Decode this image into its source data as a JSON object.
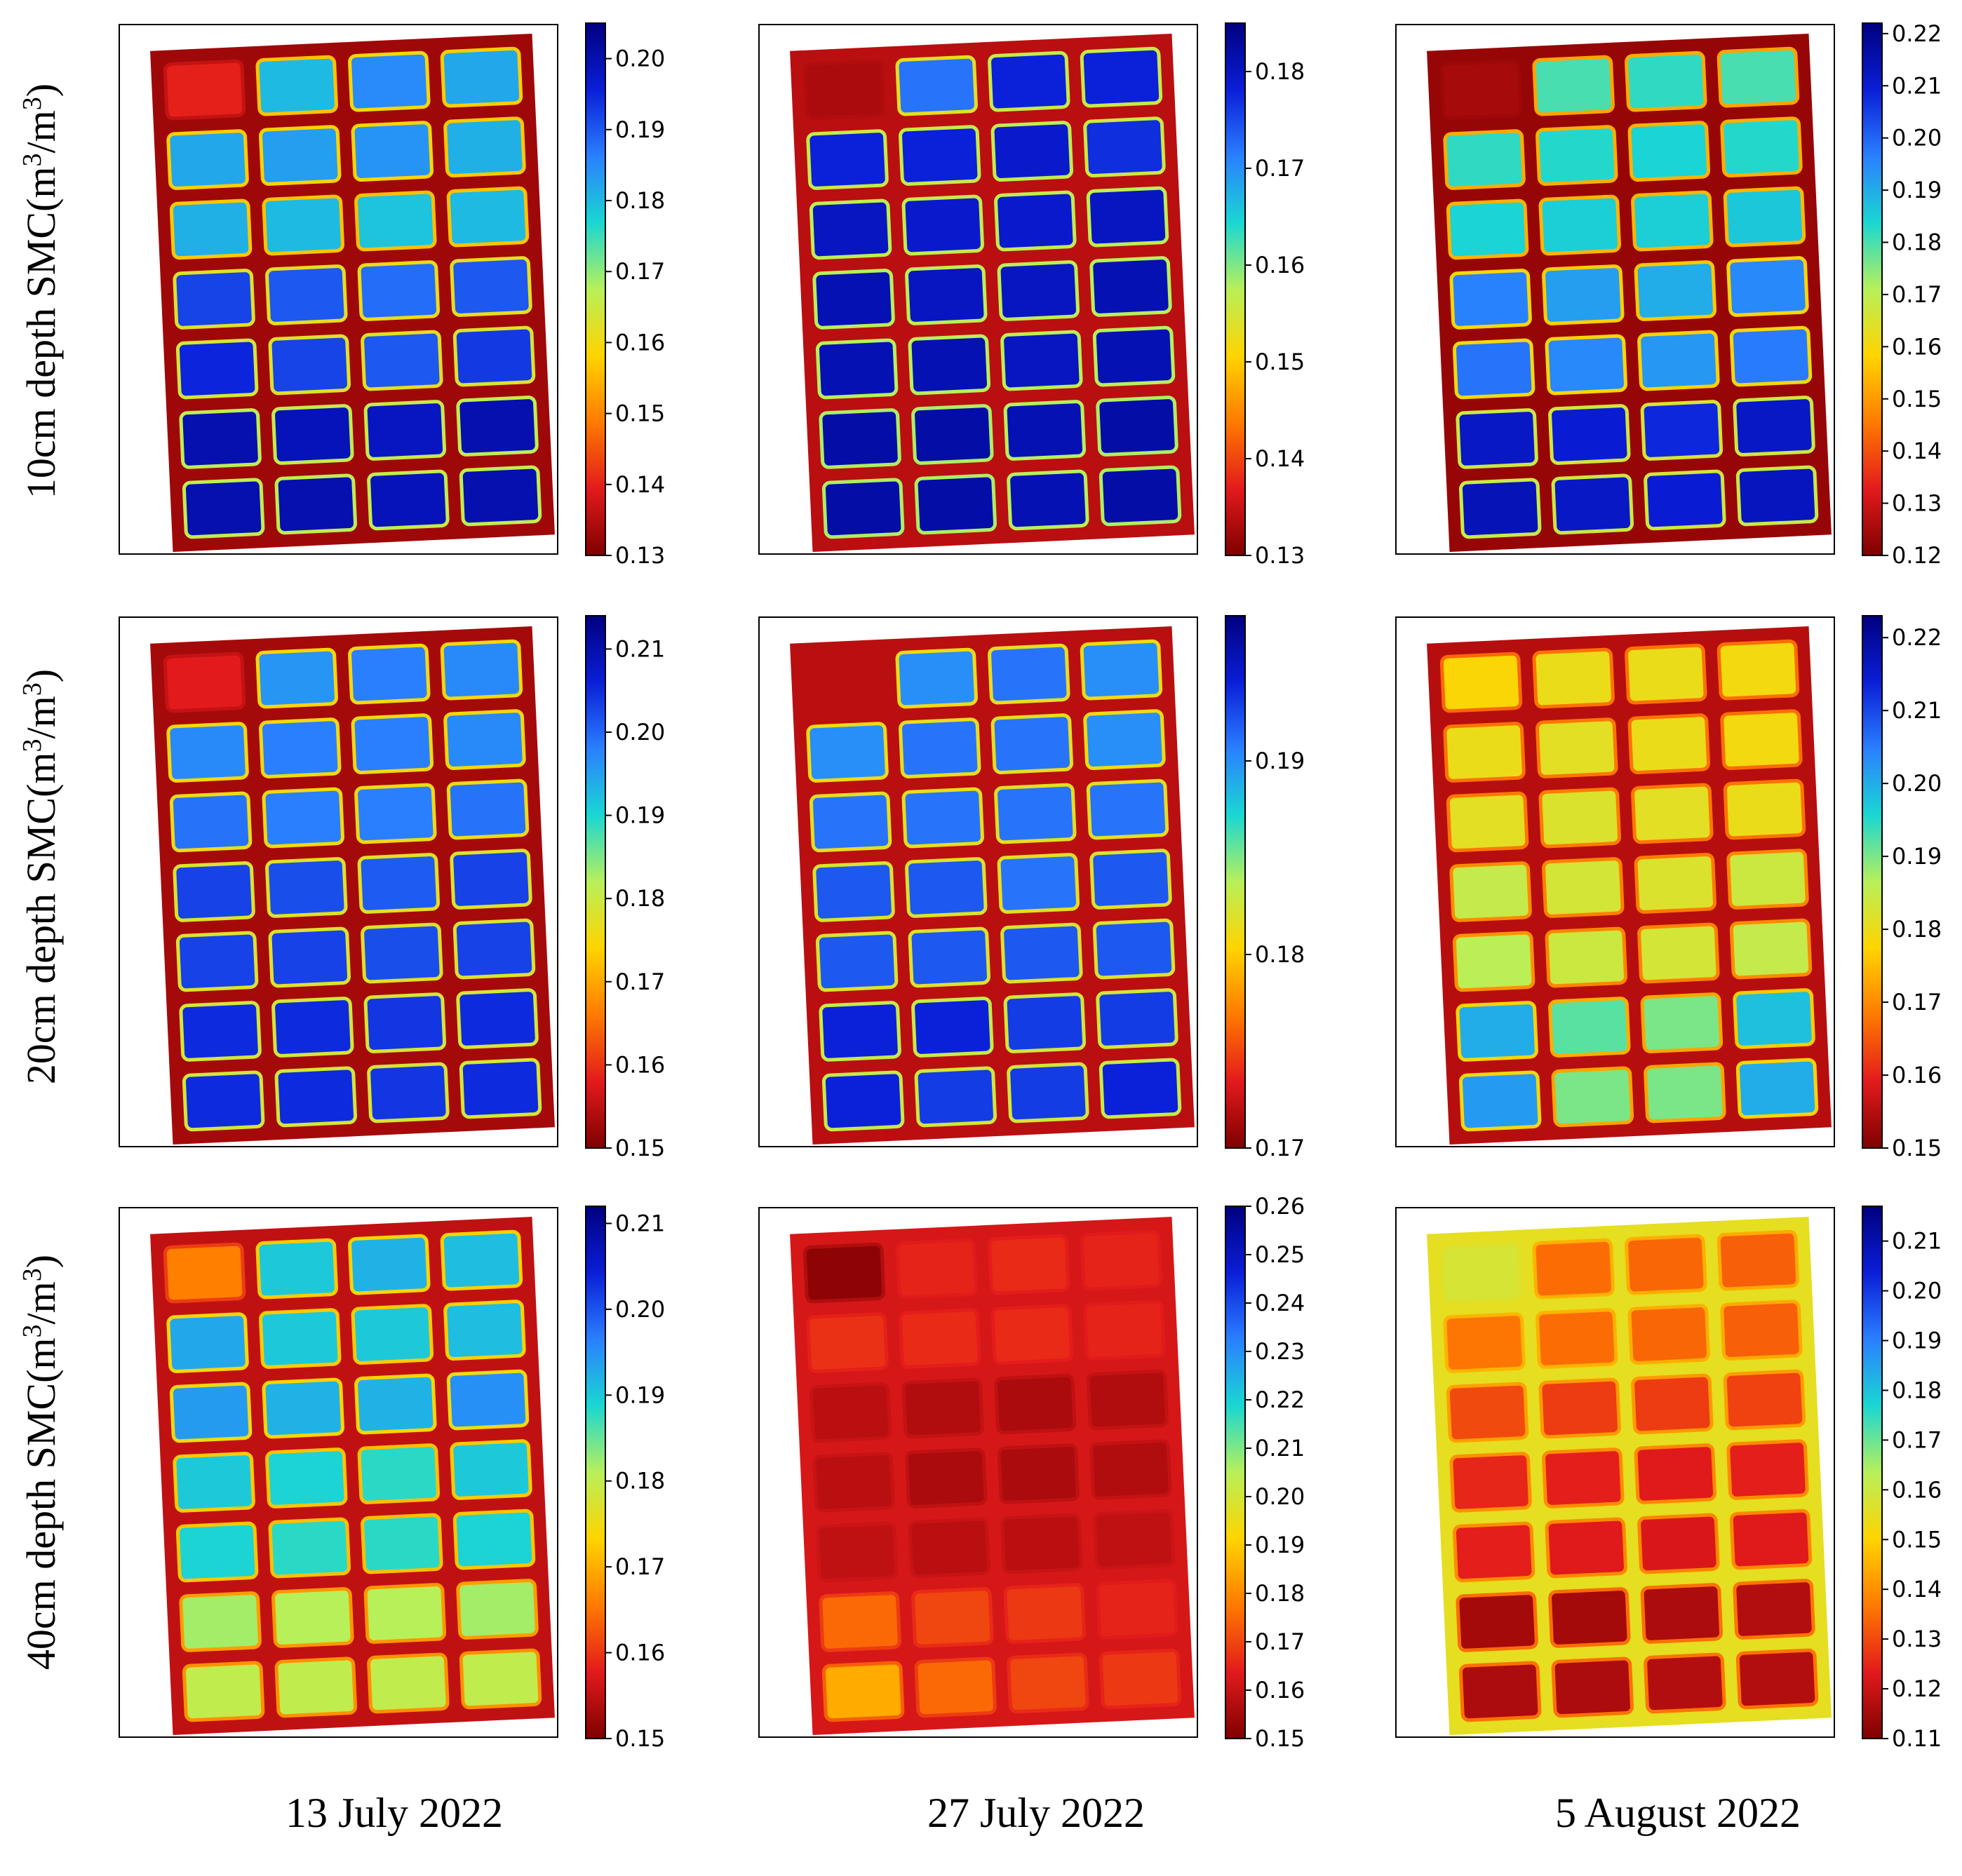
{
  "figure": {
    "row_labels": [
      {
        "depth": "10cm depth SMC",
        "unit_open": "(m",
        "sup1": "3",
        "unit_mid": "/m",
        "sup2": "3",
        "unit_close": ")"
      },
      {
        "depth": "20cm depth SMC",
        "unit_open": "(m",
        "sup1": "3",
        "unit_mid": "/m",
        "sup2": "3",
        "unit_close": ")"
      },
      {
        "depth": "40cm depth SMC",
        "unit_open": "(m",
        "sup1": "3",
        "unit_mid": "/m",
        "sup2": "3",
        "unit_close": ")"
      }
    ],
    "column_labels": [
      "13 July 2022",
      "27 July 2022",
      "5 August 2022"
    ]
  },
  "colors": {
    "colormap": [
      "#7f0000",
      "#e31a1c",
      "#ff7a00",
      "#ffd400",
      "#b8f05a",
      "#1ad7d2",
      "#2a7fff",
      "#0a1ed8",
      "#00007f"
    ],
    "field_background": "#ffffff"
  },
  "chart_data": [
    {
      "type": "heatmap",
      "row": 0,
      "col": 0,
      "depth": "10cm",
      "date": "13 July 2022",
      "colorbar_range": [
        0.13,
        0.205
      ],
      "colorbar_ticks": [
        "0.13",
        "0.14",
        "0.15",
        "0.16",
        "0.17",
        "0.18",
        "0.19",
        "0.20"
      ],
      "grid": {
        "rows": 7,
        "cols": 4
      },
      "plot_mean_smc": [
        [
          0.14,
          0.18,
          0.185,
          0.182
        ],
        [
          0.182,
          0.183,
          0.184,
          0.181
        ],
        [
          0.181,
          0.18,
          0.179,
          0.18
        ],
        [
          0.192,
          0.19,
          0.188,
          0.19
        ],
        [
          0.195,
          0.192,
          0.19,
          0.193
        ],
        [
          0.2,
          0.199,
          0.198,
          0.2
        ],
        [
          0.2,
          0.2,
          0.199,
          0.2
        ]
      ],
      "path_smc": 0.133
    },
    {
      "type": "heatmap",
      "row": 0,
      "col": 1,
      "depth": "10cm",
      "date": "27 July 2022",
      "colorbar_range": [
        0.13,
        0.185
      ],
      "colorbar_ticks": [
        "0.13",
        "0.14",
        "0.15",
        "0.16",
        "0.17",
        "0.18"
      ],
      "grid": {
        "rows": 7,
        "cols": 4
      },
      "plot_mean_smc": [
        [
          0.133,
          0.172,
          0.178,
          0.178
        ],
        [
          0.178,
          0.178,
          0.179,
          0.177
        ],
        [
          0.18,
          0.179,
          0.179,
          0.18
        ],
        [
          0.181,
          0.18,
          0.18,
          0.181
        ],
        [
          0.181,
          0.181,
          0.18,
          0.181
        ],
        [
          0.182,
          0.182,
          0.181,
          0.182
        ],
        [
          0.182,
          0.182,
          0.181,
          0.182
        ]
      ],
      "path_smc": 0.134
    },
    {
      "type": "heatmap",
      "row": 0,
      "col": 2,
      "depth": "10cm",
      "date": "5 August 2022",
      "colorbar_range": [
        0.12,
        0.222
      ],
      "colorbar_ticks": [
        "0.12",
        "0.13",
        "0.14",
        "0.15",
        "0.16",
        "0.17",
        "0.18",
        "0.19",
        "0.20",
        "0.21",
        "0.22"
      ],
      "grid": {
        "rows": 7,
        "cols": 4
      },
      "plot_mean_smc": [
        [
          0.125,
          0.18,
          0.182,
          0.18
        ],
        [
          0.182,
          0.183,
          0.184,
          0.183
        ],
        [
          0.184,
          0.185,
          0.185,
          0.186
        ],
        [
          0.196,
          0.192,
          0.19,
          0.195
        ],
        [
          0.198,
          0.195,
          0.193,
          0.197
        ],
        [
          0.212,
          0.21,
          0.208,
          0.212
        ],
        [
          0.214,
          0.212,
          0.21,
          0.213
        ]
      ],
      "path_smc": 0.123
    },
    {
      "type": "heatmap",
      "row": 1,
      "col": 0,
      "depth": "20cm",
      "date": "13 July 2022",
      "colorbar_range": [
        0.15,
        0.214
      ],
      "colorbar_ticks": [
        "0.15",
        "0.16",
        "0.17",
        "0.18",
        "0.19",
        "0.20",
        "0.21"
      ],
      "grid": {
        "rows": 7,
        "cols": 4
      },
      "plot_mean_smc": [
        [
          0.158,
          0.196,
          0.198,
          0.197
        ],
        [
          0.197,
          0.198,
          0.198,
          0.197
        ],
        [
          0.199,
          0.198,
          0.198,
          0.199
        ],
        [
          0.203,
          0.202,
          0.201,
          0.203
        ],
        [
          0.203,
          0.203,
          0.202,
          0.203
        ],
        [
          0.205,
          0.205,
          0.204,
          0.205
        ],
        [
          0.205,
          0.205,
          0.204,
          0.205
        ]
      ],
      "path_smc": 0.153
    },
    {
      "type": "heatmap",
      "row": 1,
      "col": 1,
      "depth": "20cm",
      "date": "27 July 2022",
      "colorbar_range": [
        0.17,
        0.1975
      ],
      "colorbar_ticks": [
        "0.17",
        "0.18",
        "0.19"
      ],
      "grid": {
        "rows": 7,
        "cols": 4
      },
      "plot_mean_smc": [
        [
          0.172,
          0.19,
          0.191,
          0.19
        ],
        [
          0.19,
          0.191,
          0.191,
          0.19
        ],
        [
          0.191,
          0.191,
          0.191,
          0.191
        ],
        [
          0.192,
          0.192,
          0.191,
          0.192
        ],
        [
          0.192,
          0.192,
          0.192,
          0.192
        ],
        [
          0.194,
          0.194,
          0.193,
          0.193
        ],
        [
          0.194,
          0.193,
          0.193,
          0.194
        ]
      ],
      "path_smc": 0.172
    },
    {
      "type": "heatmap",
      "row": 1,
      "col": 2,
      "depth": "20cm",
      "date": "5 August 2022",
      "colorbar_range": [
        0.15,
        0.223
      ],
      "colorbar_ticks": [
        "0.15",
        "0.16",
        "0.17",
        "0.18",
        "0.19",
        "0.20",
        "0.21",
        "0.22"
      ],
      "grid": {
        "rows": 7,
        "cols": 4
      },
      "plot_mean_smc": [
        [
          0.178,
          0.18,
          0.18,
          0.179
        ],
        [
          0.18,
          0.181,
          0.18,
          0.179
        ],
        [
          0.181,
          0.182,
          0.181,
          0.18
        ],
        [
          0.185,
          0.183,
          0.182,
          0.184
        ],
        [
          0.186,
          0.184,
          0.183,
          0.185
        ],
        [
          0.2,
          0.192,
          0.19,
          0.198
        ],
        [
          0.202,
          0.19,
          0.19,
          0.2
        ]
      ],
      "path_smc": 0.155
    },
    {
      "type": "heatmap",
      "row": 2,
      "col": 0,
      "depth": "40cm",
      "date": "13 July 2022",
      "colorbar_range": [
        0.15,
        0.212
      ],
      "colorbar_ticks": [
        "0.15",
        "0.16",
        "0.17",
        "0.18",
        "0.19",
        "0.20",
        "0.21"
      ],
      "grid": {
        "rows": 7,
        "cols": 4
      },
      "plot_mean_smc": [
        [
          0.166,
          0.19,
          0.192,
          0.191
        ],
        [
          0.193,
          0.19,
          0.19,
          0.191
        ],
        [
          0.194,
          0.192,
          0.192,
          0.195
        ],
        [
          0.19,
          0.189,
          0.188,
          0.19
        ],
        [
          0.189,
          0.188,
          0.188,
          0.189
        ],
        [
          0.182,
          0.181,
          0.181,
          0.182
        ],
        [
          0.18,
          0.18,
          0.18,
          0.18
        ]
      ],
      "path_smc": 0.155
    },
    {
      "type": "heatmap",
      "row": 2,
      "col": 1,
      "depth": "40cm",
      "date": "27 July 2022",
      "colorbar_range": [
        0.15,
        0.26
      ],
      "colorbar_ticks": [
        "0.15",
        "0.16",
        "0.17",
        "0.18",
        "0.19",
        "0.20",
        "0.21",
        "0.22",
        "0.23",
        "0.24",
        "0.25",
        "0.26"
      ],
      "grid": {
        "rows": 7,
        "cols": 4
      },
      "plot_mean_smc": [
        [
          0.152,
          0.165,
          0.166,
          0.165
        ],
        [
          0.167,
          0.166,
          0.166,
          0.165
        ],
        [
          0.158,
          0.157,
          0.156,
          0.157
        ],
        [
          0.158,
          0.156,
          0.156,
          0.157
        ],
        [
          0.159,
          0.158,
          0.158,
          0.159
        ],
        [
          0.175,
          0.17,
          0.168,
          0.165
        ],
        [
          0.185,
          0.175,
          0.17,
          0.168
        ]
      ],
      "path_smc": 0.162
    },
    {
      "type": "heatmap",
      "row": 2,
      "col": 2,
      "depth": "40cm",
      "date": "5 August 2022",
      "colorbar_range": [
        0.11,
        0.217
      ],
      "colorbar_ticks": [
        "0.11",
        "0.12",
        "0.13",
        "0.14",
        "0.15",
        "0.16",
        "0.17",
        "0.18",
        "0.19",
        "0.20",
        "0.21"
      ],
      "grid": {
        "rows": 7,
        "cols": 4
      },
      "plot_mean_smc": [
        [
          0.158,
          0.135,
          0.134,
          0.133
        ],
        [
          0.136,
          0.135,
          0.134,
          0.133
        ],
        [
          0.13,
          0.128,
          0.128,
          0.129
        ],
        [
          0.125,
          0.124,
          0.123,
          0.124
        ],
        [
          0.124,
          0.123,
          0.122,
          0.123
        ],
        [
          0.115,
          0.115,
          0.116,
          0.117
        ],
        [
          0.116,
          0.116,
          0.117,
          0.117
        ]
      ],
      "path_smc": 0.155
    }
  ]
}
